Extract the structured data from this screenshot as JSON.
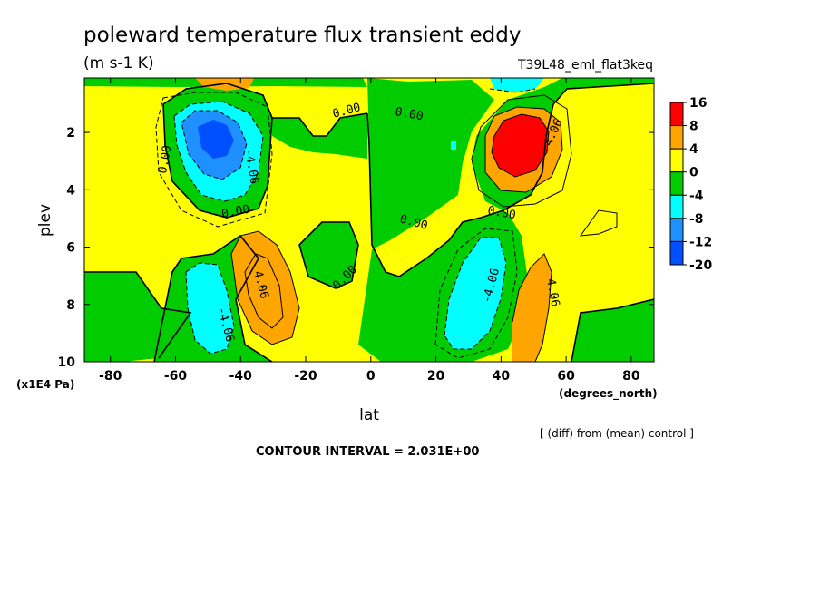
{
  "title": "poleward temperature flux transient eddy",
  "units": "(m s-1 K)",
  "run_label": "T39L48_eml_flat3keq",
  "xlabel": "lat",
  "xunits": "(degrees_north)",
  "ylabel": "plev",
  "yunits": "(x1E4 Pa)",
  "note": "[ (diff) from (mean) control ]",
  "contour_interval": "CONTOUR INTERVAL = 2.031E+00",
  "chart_data": {
    "type": "heatmap",
    "x_ticks": [
      "-80",
      "-60",
      "-40",
      "-20",
      "0",
      "20",
      "40",
      "60",
      "80"
    ],
    "x_tick_values": [
      -80,
      -60,
      -40,
      -20,
      0,
      20,
      40,
      60,
      80
    ],
    "y_ticks": [
      "2",
      "4",
      "6",
      "8",
      "10"
    ],
    "y_tick_values": [
      2,
      4,
      6,
      8,
      10
    ],
    "xlim": [
      -88,
      87
    ],
    "ylim": [
      10,
      0.1
    ],
    "contour_labels": [
      "4.06",
      "0.00",
      "-4.06"
    ],
    "colorbar": {
      "labels": [
        "16",
        "8",
        "4",
        "0",
        "-4",
        "-8",
        "-12",
        "-20"
      ],
      "colors": [
        "#ff0000",
        "#ffa500",
        "#ffff00",
        "#00cc00",
        "#00ffff",
        "#1e90ff",
        "#0050ff"
      ]
    },
    "features": [
      {
        "lat": 46,
        "plev": 2.5,
        "value": 14
      },
      {
        "lat": -47,
        "plev": 2.4,
        "value": -13
      },
      {
        "lat": -33,
        "plev": 7.3,
        "value": 7
      },
      {
        "lat": 30,
        "plev": 7.4,
        "value": -7
      },
      {
        "lat": -47,
        "plev": 8.6,
        "value": -6
      },
      {
        "lat": 50,
        "plev": 8.5,
        "value": 6
      },
      {
        "lat": -15,
        "plev": 6.5,
        "value": -2
      },
      {
        "lat": -75,
        "plev": 4.5,
        "value": 2
      },
      {
        "lat": 75,
        "plev": 5,
        "value": 2
      },
      {
        "lat": 0,
        "plev": 4,
        "value": -2
      },
      {
        "lat": -52,
        "plev": 0.4,
        "value": 5
      },
      {
        "lat": 45,
        "plev": 0.4,
        "value": -5
      }
    ]
  }
}
